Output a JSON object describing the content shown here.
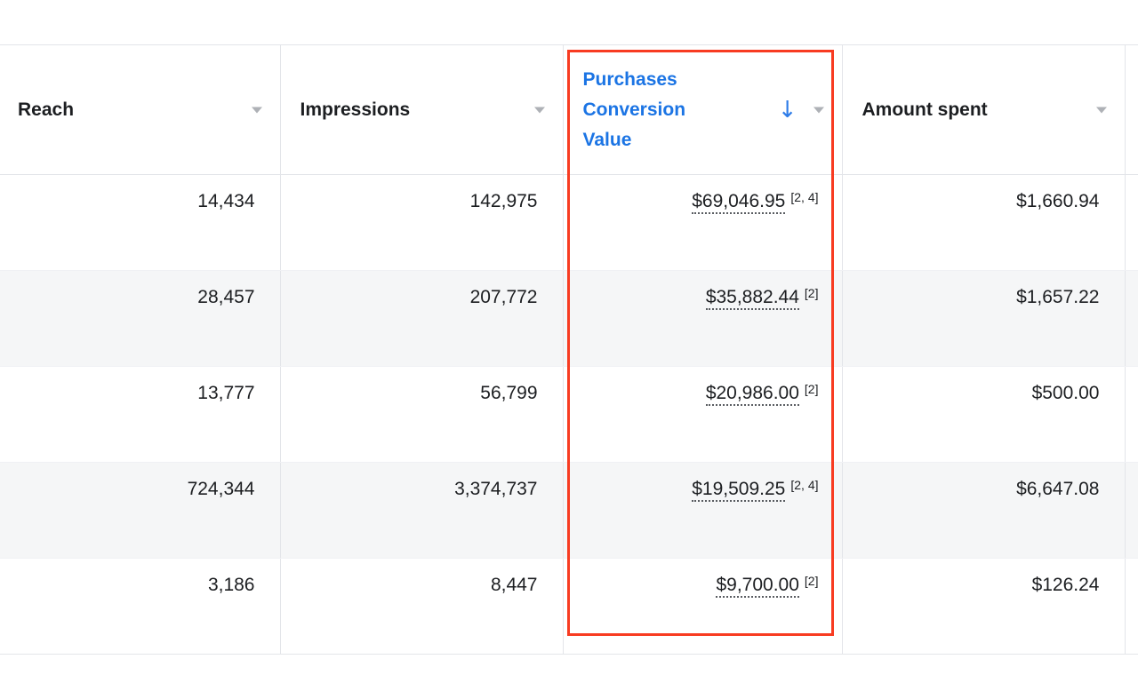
{
  "colors": {
    "accent_blue": "#1b74e4",
    "sort_arrow_blue": "#2e7ce8",
    "highlight_red": "#f83b21",
    "row_alt_background": "#f5f6f7",
    "grid_border": "#e3e5e9",
    "text_primary": "#1c1e21",
    "caret_gray": "#aeb1b6"
  },
  "icons": {
    "sort_descending": "↓",
    "column_menu_caret": "triangle-down"
  },
  "table": {
    "header": {
      "columns": [
        {
          "label": "Reach"
        },
        {
          "label": "Impressions"
        },
        {
          "label": "Purchases Conversion Value",
          "sorted": "descending",
          "highlighted": true
        },
        {
          "label": "Amount spent"
        }
      ]
    },
    "rows": [
      {
        "reach": "14,434",
        "impressions": "142,975",
        "purchases_value": "$69,046.95",
        "purchases_footnote": "[2, 4]",
        "amount_spent": "$1,660.94"
      },
      {
        "reach": "28,457",
        "impressions": "207,772",
        "purchases_value": "$35,882.44",
        "purchases_footnote": "[2]",
        "amount_spent": "$1,657.22"
      },
      {
        "reach": "13,777",
        "impressions": "56,799",
        "purchases_value": "$20,986.00",
        "purchases_footnote": "[2]",
        "amount_spent": "$500.00"
      },
      {
        "reach": "724,344",
        "impressions": "3,374,737",
        "purchases_value": "$19,509.25",
        "purchases_footnote": "[2, 4]",
        "amount_spent": "$6,647.08"
      },
      {
        "reach": "3,186",
        "impressions": "8,447",
        "purchases_value": "$9,700.00",
        "purchases_footnote": "[2]",
        "amount_spent": "$126.24"
      }
    ]
  },
  "annotation": {
    "type": "highlight-rectangle",
    "color": "#f83b21",
    "target_column": "Purchases Conversion Value"
  }
}
